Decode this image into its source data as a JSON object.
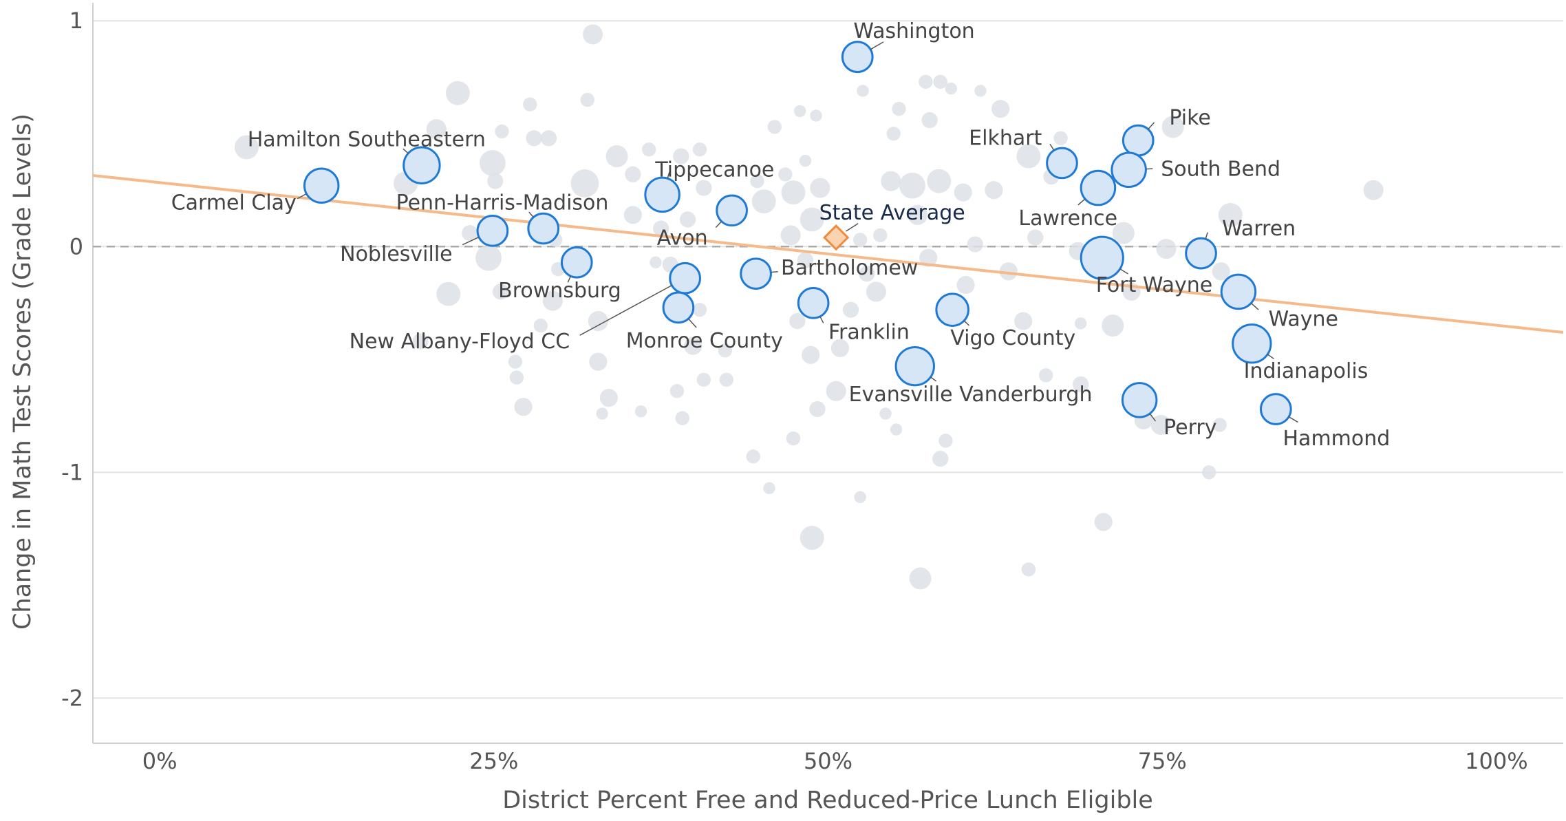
{
  "chart_data": {
    "type": "scatter",
    "x_label": "District Percent Free and Reduced-Price Lunch Eligible",
    "y_label": "Change in Math Test Scores (Grade Levels)",
    "xlim": [
      -5,
      105
    ],
    "ylim": [
      -2.2,
      1.08
    ],
    "xticks": [
      {
        "value": 0,
        "label": "0%"
      },
      {
        "value": 25,
        "label": "25%"
      },
      {
        "value": 50,
        "label": "50%"
      },
      {
        "value": 75,
        "label": "75%"
      },
      {
        "value": 100,
        "label": "100%"
      }
    ],
    "yticks": [
      1,
      0,
      -1,
      -2
    ],
    "grid": true,
    "reference_y": 0,
    "trend_line": {
      "x": [
        -5,
        105
      ],
      "y": [
        0.315,
        -0.38
      ],
      "color": "#f5b98a"
    },
    "points": {
      "color": "#dde2e8",
      "x": [
        6.5,
        22.3,
        20.7,
        27.7,
        25.6,
        32.4,
        32.0,
        29.1,
        28.0,
        24.9,
        25.1,
        18.4,
        21.6,
        24.6,
        23.2,
        25.5,
        26.6,
        26.7,
        27.2,
        29.6,
        29.8,
        29.4,
        31.8,
        32.8,
        32.8,
        33.6,
        33.1,
        34.2,
        35.4,
        35.4,
        36.6,
        37.1,
        37.5,
        38.2,
        39.0,
        40.7,
        40.4,
        39.5,
        40.4,
        39.9,
        40.7,
        39.1,
        38.7,
        42.4,
        42.3,
        44.7,
        45.2,
        46.0,
        46.8,
        47.4,
        47.2,
        47.9,
        49.1,
        48.3,
        49.4,
        48.8,
        48.3,
        48.7,
        47.7,
        47.4,
        49.2,
        50.6,
        50.9,
        51.7,
        52.4,
        52.9,
        53.6,
        53.9,
        54.7,
        55.3,
        54.9,
        57.3,
        57.6,
        58.4,
        59.2,
        58.3,
        56.3,
        56.7,
        57.5,
        60.1,
        60.3,
        61.0,
        61.4,
        62.9,
        62.4,
        63.5,
        64.6,
        65.5,
        65.0,
        66.7,
        67.4,
        66.3,
        68.9,
        68.9,
        71.3,
        72.1,
        75.3,
        75.8,
        80.1,
        79.4,
        79.3,
        78.5,
        90.8,
        70.6,
        48.8,
        56.9,
        65.0,
        58.4,
        58.8,
        45.6,
        44.4,
        52.4,
        54.3,
        55.1,
        28.5,
        19.5,
        36.0,
        73.6,
        74.9,
        68.7,
        72.7,
        52.6
      ],
      "y": [
        0.44,
        0.68,
        0.52,
        0.63,
        0.51,
        0.94,
        0.65,
        0.48,
        0.48,
        0.37,
        0.29,
        0.28,
        -0.21,
        -0.05,
        0.06,
        -0.2,
        -0.51,
        -0.58,
        -0.71,
        0.03,
        -0.1,
        -0.24,
        0.28,
        -0.33,
        -0.51,
        -0.67,
        -0.74,
        0.4,
        0.32,
        0.14,
        0.43,
        -0.07,
        0.08,
        -0.08,
        0.4,
        0.26,
        0.43,
        0.12,
        -0.28,
        -0.44,
        -0.59,
        -0.76,
        -0.64,
        -0.59,
        -0.46,
        0.29,
        0.2,
        0.53,
        0.32,
        0.24,
        0.05,
        0.6,
        0.58,
        0.38,
        0.26,
        0.12,
        -0.06,
        -0.48,
        -0.33,
        -0.85,
        -0.72,
        -0.64,
        -0.45,
        -0.28,
        0.03,
        -0.12,
        -0.2,
        0.05,
        0.29,
        0.61,
        0.5,
        0.73,
        0.56,
        0.73,
        0.7,
        0.29,
        0.27,
        0.14,
        -0.05,
        0.24,
        -0.17,
        0.01,
        0.69,
        0.61,
        0.25,
        -0.11,
        -0.33,
        0.04,
        0.4,
        0.31,
        0.48,
        -0.57,
        -0.61,
        -0.34,
        -0.35,
        0.06,
        -0.01,
        0.53,
        0.14,
        -0.11,
        -0.79,
        -1.0,
        0.25,
        -1.22,
        -1.29,
        -1.47,
        -1.43,
        -0.94,
        -0.86,
        -1.07,
        -0.93,
        -1.11,
        -0.74,
        -0.81,
        -0.35,
        -0.42,
        -0.73,
        -0.77,
        -0.79,
        -0.02,
        -0.2,
        0.69
      ],
      "sizes": [
        12,
        12,
        10,
        7,
        7,
        10,
        7,
        8,
        8,
        13,
        8,
        12,
        12,
        13,
        8,
        8,
        7,
        7,
        9,
        7,
        7,
        10,
        14,
        10,
        9,
        9,
        6,
        11,
        8,
        9,
        7,
        6,
        8,
        8,
        8,
        8,
        7,
        8,
        7,
        9,
        7,
        7,
        7,
        7,
        7,
        7,
        12,
        7,
        7,
        12,
        10,
        6,
        6,
        6,
        10,
        12,
        8,
        9,
        8,
        7,
        8,
        10,
        9,
        8,
        7,
        8,
        10,
        7,
        10,
        7,
        7,
        7,
        8,
        7,
        6,
        12,
        13,
        10,
        9,
        9,
        9,
        8,
        6,
        9,
        9,
        9,
        9,
        8,
        12,
        8,
        7,
        7,
        8,
        6,
        11,
        11,
        10,
        11,
        12,
        9,
        7,
        7,
        10,
        9,
        12,
        11,
        7,
        8,
        7,
        6,
        7,
        6,
        6,
        6,
        7,
        8,
        6,
        9,
        10,
        9,
        9,
        6
      ]
    },
    "districts": {
      "color": "#d6e6f7",
      "edge_color": "#1f7ad6",
      "names": [
        "Washington",
        "Hamilton Southeastern",
        "Carmel Clay",
        "Penn-Harris-Madison",
        "Noblesville",
        "Brownsburg",
        "Tippecanoe",
        "Avon",
        "New Albany-Floyd CC",
        "Monroe County",
        "Bartholomew",
        "Franklin",
        "Evansville Vanderburgh",
        "Vigo County",
        "Elkhart",
        "Lawrence",
        "Pike",
        "South Bend",
        "Fort Wayne",
        "Warren",
        "Wayne",
        "Indianapolis",
        "Perry",
        "Hammond"
      ],
      "x": [
        52.2,
        19.6,
        12.1,
        28.7,
        24.9,
        31.2,
        37.6,
        42.8,
        39.3,
        38.8,
        44.6,
        48.9,
        56.5,
        59.3,
        67.5,
        70.2,
        73.2,
        72.5,
        70.5,
        77.9,
        80.7,
        81.7,
        73.3,
        83.5
      ],
      "y": [
        0.84,
        0.36,
        0.27,
        0.08,
        0.07,
        -0.07,
        0.23,
        0.16,
        -0.14,
        -0.27,
        -0.12,
        -0.25,
        -0.53,
        -0.28,
        0.37,
        0.26,
        0.47,
        0.34,
        -0.05,
        -0.03,
        -0.2,
        -0.43,
        -0.68,
        -0.72
      ],
      "sizes": [
        15,
        18,
        17,
        15,
        15,
        15,
        17,
        15,
        15,
        15,
        15,
        15,
        19,
        16,
        15,
        17,
        15,
        17,
        21,
        15,
        17,
        19,
        17,
        15
      ]
    },
    "state_average": {
      "name": "State Average",
      "x": 50.6,
      "y": 0.04,
      "color": "#fcd3b0",
      "edge_color": "#f08a3c"
    }
  }
}
